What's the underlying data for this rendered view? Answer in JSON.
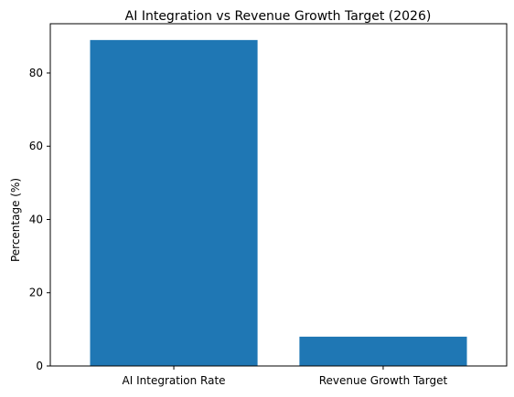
{
  "chart_data": {
    "type": "bar",
    "title": "AI Integration vs Revenue Growth Target (2026)",
    "xlabel": "",
    "ylabel": "Percentage (%)",
    "categories": [
      "AI Integration Rate",
      "Revenue Growth Target"
    ],
    "values": [
      89,
      8
    ],
    "ylim": [
      0,
      93.45
    ],
    "yticks": [
      0,
      20,
      40,
      60,
      80
    ],
    "grid": false,
    "legend": "none",
    "bar_color": "#1f77b4"
  }
}
